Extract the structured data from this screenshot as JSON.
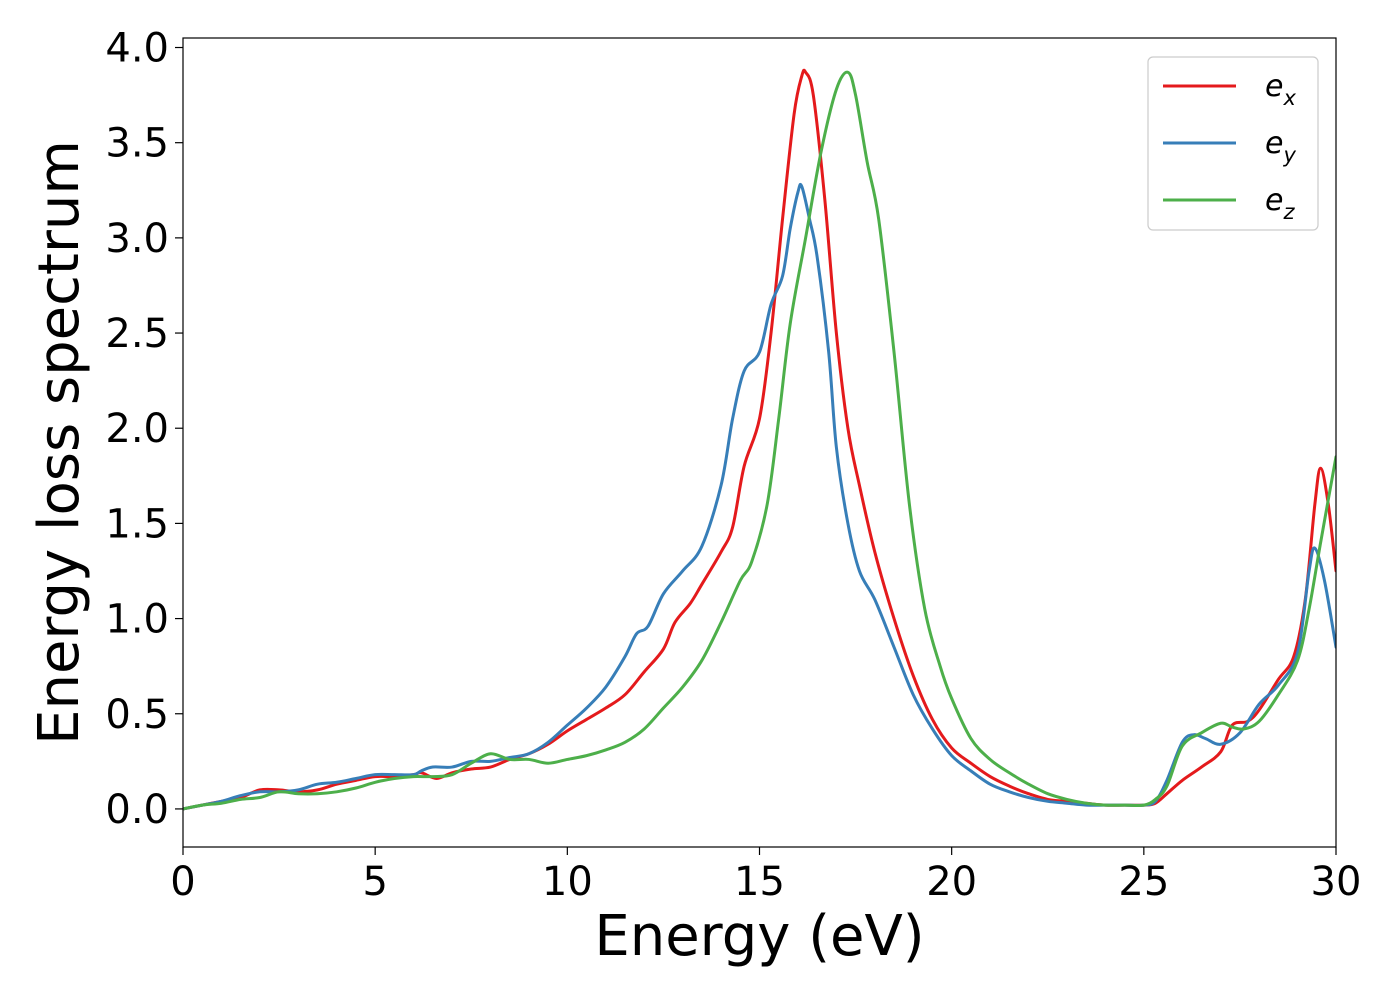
{
  "chart_data": {
    "type": "line",
    "xlabel": "Energy (eV)",
    "ylabel": "Energy loss spectrum",
    "xlim": [
      0,
      30
    ],
    "ylim": [
      -0.2,
      4.05
    ],
    "x_ticks": [
      "0",
      "5",
      "10",
      "15",
      "20",
      "25",
      "30"
    ],
    "y_ticks": [
      "0.0",
      "0.5",
      "1.0",
      "1.5",
      "2.0",
      "2.5",
      "3.0",
      "3.5",
      "4.0"
    ],
    "grid": false,
    "legend_position": "top-right",
    "series": [
      {
        "name": "e",
        "subscript": "x",
        "color": "#e41a1c",
        "points": [
          [
            0,
            0.0
          ],
          [
            0.5,
            0.02
          ],
          [
            1,
            0.04
          ],
          [
            1.5,
            0.06
          ],
          [
            2,
            0.1
          ],
          [
            2.5,
            0.1
          ],
          [
            3,
            0.09
          ],
          [
            3.5,
            0.1
          ],
          [
            4,
            0.13
          ],
          [
            4.5,
            0.15
          ],
          [
            5,
            0.17
          ],
          [
            5.5,
            0.17
          ],
          [
            6,
            0.18
          ],
          [
            6.2,
            0.19
          ],
          [
            6.6,
            0.16
          ],
          [
            7,
            0.19
          ],
          [
            7.5,
            0.21
          ],
          [
            8,
            0.22
          ],
          [
            8.5,
            0.26
          ],
          [
            9,
            0.29
          ],
          [
            9.5,
            0.34
          ],
          [
            10,
            0.41
          ],
          [
            10.5,
            0.47
          ],
          [
            11,
            0.53
          ],
          [
            11.5,
            0.6
          ],
          [
            12,
            0.72
          ],
          [
            12.5,
            0.84
          ],
          [
            12.8,
            0.98
          ],
          [
            13.2,
            1.08
          ],
          [
            13.5,
            1.18
          ],
          [
            14,
            1.35
          ],
          [
            14.3,
            1.48
          ],
          [
            14.6,
            1.8
          ],
          [
            15,
            2.05
          ],
          [
            15.3,
            2.5
          ],
          [
            15.6,
            3.1
          ],
          [
            15.9,
            3.65
          ],
          [
            16.1,
            3.85
          ],
          [
            16.2,
            3.87
          ],
          [
            16.4,
            3.75
          ],
          [
            16.7,
            3.2
          ],
          [
            17,
            2.5
          ],
          [
            17.3,
            2.0
          ],
          [
            17.6,
            1.7
          ],
          [
            18,
            1.35
          ],
          [
            18.5,
            1.0
          ],
          [
            19,
            0.7
          ],
          [
            19.5,
            0.47
          ],
          [
            20,
            0.32
          ],
          [
            20.5,
            0.24
          ],
          [
            21,
            0.17
          ],
          [
            21.5,
            0.12
          ],
          [
            22,
            0.08
          ],
          [
            22.5,
            0.05
          ],
          [
            23,
            0.04
          ],
          [
            23.5,
            0.03
          ],
          [
            24,
            0.02
          ],
          [
            24.5,
            0.02
          ],
          [
            25,
            0.02
          ],
          [
            25.3,
            0.03
          ],
          [
            25.6,
            0.08
          ],
          [
            26,
            0.15
          ],
          [
            26.5,
            0.22
          ],
          [
            27,
            0.3
          ],
          [
            27.3,
            0.44
          ],
          [
            27.7,
            0.46
          ],
          [
            28,
            0.52
          ],
          [
            28.5,
            0.68
          ],
          [
            28.9,
            0.8
          ],
          [
            29.2,
            1.1
          ],
          [
            29.45,
            1.6
          ],
          [
            29.6,
            1.79
          ],
          [
            29.8,
            1.6
          ],
          [
            30,
            1.25
          ]
        ]
      },
      {
        "name": "e",
        "subscript": "y",
        "color": "#377eb8",
        "points": [
          [
            0,
            0.0
          ],
          [
            0.5,
            0.02
          ],
          [
            1,
            0.04
          ],
          [
            1.5,
            0.07
          ],
          [
            2,
            0.09
          ],
          [
            2.5,
            0.09
          ],
          [
            3,
            0.1
          ],
          [
            3.5,
            0.13
          ],
          [
            4,
            0.14
          ],
          [
            4.5,
            0.16
          ],
          [
            5,
            0.18
          ],
          [
            5.5,
            0.18
          ],
          [
            6,
            0.18
          ],
          [
            6.2,
            0.2
          ],
          [
            6.5,
            0.22
          ],
          [
            7,
            0.22
          ],
          [
            7.5,
            0.25
          ],
          [
            8,
            0.25
          ],
          [
            8.5,
            0.27
          ],
          [
            9,
            0.29
          ],
          [
            9.5,
            0.35
          ],
          [
            10,
            0.44
          ],
          [
            10.5,
            0.53
          ],
          [
            11,
            0.64
          ],
          [
            11.5,
            0.8
          ],
          [
            11.8,
            0.92
          ],
          [
            12.1,
            0.96
          ],
          [
            12.5,
            1.13
          ],
          [
            13,
            1.25
          ],
          [
            13.5,
            1.38
          ],
          [
            14,
            1.7
          ],
          [
            14.3,
            2.05
          ],
          [
            14.6,
            2.3
          ],
          [
            15,
            2.4
          ],
          [
            15.3,
            2.65
          ],
          [
            15.6,
            2.8
          ],
          [
            15.8,
            3.05
          ],
          [
            16,
            3.24
          ],
          [
            16.1,
            3.27
          ],
          [
            16.3,
            3.1
          ],
          [
            16.5,
            2.9
          ],
          [
            16.8,
            2.4
          ],
          [
            17,
            1.9
          ],
          [
            17.3,
            1.5
          ],
          [
            17.6,
            1.25
          ],
          [
            18,
            1.1
          ],
          [
            18.5,
            0.85
          ],
          [
            19,
            0.6
          ],
          [
            19.5,
            0.42
          ],
          [
            20,
            0.28
          ],
          [
            20.5,
            0.2
          ],
          [
            21,
            0.13
          ],
          [
            21.5,
            0.09
          ],
          [
            22,
            0.06
          ],
          [
            22.5,
            0.04
          ],
          [
            23,
            0.03
          ],
          [
            23.5,
            0.02
          ],
          [
            24,
            0.02
          ],
          [
            24.5,
            0.02
          ],
          [
            25,
            0.02
          ],
          [
            25.3,
            0.04
          ],
          [
            25.6,
            0.15
          ],
          [
            26,
            0.35
          ],
          [
            26.3,
            0.39
          ],
          [
            26.6,
            0.37
          ],
          [
            27,
            0.34
          ],
          [
            27.5,
            0.4
          ],
          [
            28,
            0.55
          ],
          [
            28.5,
            0.65
          ],
          [
            29,
            0.82
          ],
          [
            29.3,
            1.25
          ],
          [
            29.45,
            1.37
          ],
          [
            29.7,
            1.2
          ],
          [
            30,
            0.85
          ]
        ]
      },
      {
        "name": "e",
        "subscript": "z",
        "color": "#4daf4a",
        "points": [
          [
            0,
            0.0
          ],
          [
            0.5,
            0.02
          ],
          [
            1,
            0.03
          ],
          [
            1.5,
            0.05
          ],
          [
            2,
            0.06
          ],
          [
            2.5,
            0.09
          ],
          [
            3,
            0.08
          ],
          [
            3.5,
            0.08
          ],
          [
            4,
            0.09
          ],
          [
            4.5,
            0.11
          ],
          [
            5,
            0.14
          ],
          [
            5.5,
            0.16
          ],
          [
            6,
            0.17
          ],
          [
            6.5,
            0.17
          ],
          [
            7,
            0.18
          ],
          [
            7.5,
            0.24
          ],
          [
            8,
            0.29
          ],
          [
            8.5,
            0.26
          ],
          [
            9,
            0.26
          ],
          [
            9.5,
            0.24
          ],
          [
            10,
            0.26
          ],
          [
            10.5,
            0.28
          ],
          [
            11,
            0.31
          ],
          [
            11.5,
            0.35
          ],
          [
            12,
            0.42
          ],
          [
            12.5,
            0.53
          ],
          [
            13,
            0.64
          ],
          [
            13.5,
            0.78
          ],
          [
            14,
            0.98
          ],
          [
            14.5,
            1.2
          ],
          [
            14.8,
            1.3
          ],
          [
            15.2,
            1.6
          ],
          [
            15.5,
            2.05
          ],
          [
            15.8,
            2.55
          ],
          [
            16.2,
            3.0
          ],
          [
            16.6,
            3.45
          ],
          [
            17,
            3.78
          ],
          [
            17.3,
            3.87
          ],
          [
            17.5,
            3.75
          ],
          [
            17.8,
            3.4
          ],
          [
            18.1,
            3.1
          ],
          [
            18.5,
            2.4
          ],
          [
            18.9,
            1.6
          ],
          [
            19.3,
            1.05
          ],
          [
            19.7,
            0.75
          ],
          [
            20,
            0.58
          ],
          [
            20.5,
            0.37
          ],
          [
            21,
            0.26
          ],
          [
            21.5,
            0.19
          ],
          [
            22,
            0.13
          ],
          [
            22.5,
            0.08
          ],
          [
            23,
            0.05
          ],
          [
            23.5,
            0.03
          ],
          [
            24,
            0.02
          ],
          [
            24.5,
            0.02
          ],
          [
            25,
            0.02
          ],
          [
            25.3,
            0.05
          ],
          [
            25.6,
            0.12
          ],
          [
            26,
            0.33
          ],
          [
            26.5,
            0.4
          ],
          [
            27,
            0.45
          ],
          [
            27.3,
            0.43
          ],
          [
            27.6,
            0.42
          ],
          [
            28,
            0.46
          ],
          [
            28.5,
            0.6
          ],
          [
            29,
            0.78
          ],
          [
            29.3,
            1.05
          ],
          [
            29.6,
            1.4
          ],
          [
            30,
            1.85
          ]
        ]
      }
    ]
  }
}
